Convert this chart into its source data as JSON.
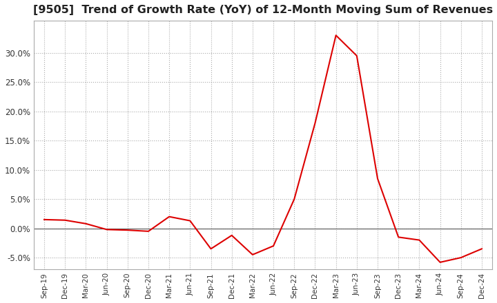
{
  "title": "[9505]  Trend of Growth Rate (YoY) of 12-Month Moving Sum of Revenues",
  "title_fontsize": 11.5,
  "line_color": "#dd0000",
  "background_color": "#ffffff",
  "grid_color": "#aaaaaa",
  "labels": [
    "Sep-19",
    "Dec-19",
    "Mar-20",
    "Jun-20",
    "Sep-20",
    "Dec-20",
    "Mar-21",
    "Jun-21",
    "Sep-21",
    "Dec-21",
    "Mar-22",
    "Jun-22",
    "Sep-22",
    "Dec-22",
    "Mar-23",
    "Jun-23",
    "Sep-23",
    "Dec-23",
    "Mar-24",
    "Jun-24",
    "Sep-24",
    "Dec-24"
  ],
  "values": [
    1.5,
    1.4,
    0.8,
    -0.2,
    -0.3,
    -0.5,
    2.0,
    1.3,
    -3.5,
    -1.2,
    -4.5,
    -3.0,
    5.0,
    18.0,
    33.0,
    29.5,
    8.5,
    -1.5,
    -2.0,
    -5.8,
    -5.0,
    -3.5
  ],
  "ylim": [
    -7.0,
    35.5
  ],
  "yticks": [
    -5.0,
    0.0,
    5.0,
    10.0,
    15.0,
    20.0,
    25.0,
    30.0
  ],
  "figsize": [
    7.2,
    4.4
  ],
  "dpi": 100
}
